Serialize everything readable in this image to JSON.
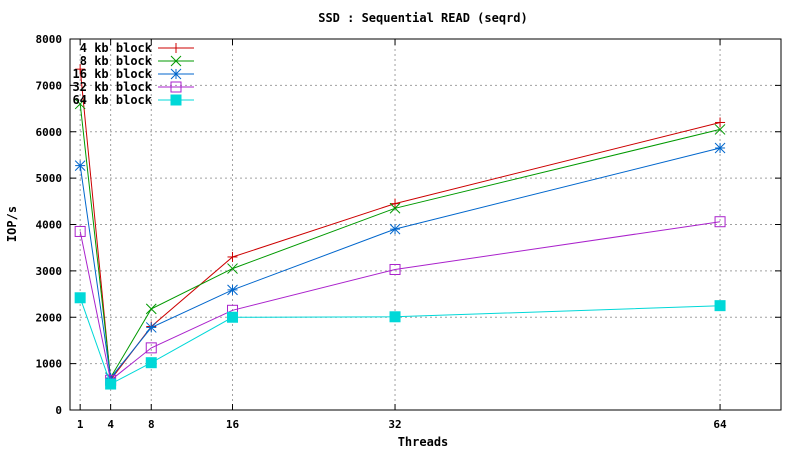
{
  "chart_data": {
    "type": "line",
    "title": "SSD : Sequential READ (seqrd)",
    "xlabel": "Threads",
    "ylabel": "IOP/s",
    "x": [
      1,
      4,
      8,
      16,
      32,
      64
    ],
    "xticks": [
      1,
      4,
      8,
      16,
      32,
      64
    ],
    "xlim": [
      0,
      70
    ],
    "yticks": [
      0,
      1000,
      2000,
      3000,
      4000,
      5000,
      6000,
      7000,
      8000
    ],
    "ylim": [
      0,
      8000
    ],
    "grid": true,
    "legend_position": "top-left",
    "series": [
      {
        "name": "4 kb block",
        "values": [
          7350,
          650,
          1800,
          3300,
          4450,
          6200
        ],
        "color": "#cc0000",
        "marker": "plus"
      },
      {
        "name": "8 kb block",
        "values": [
          6600,
          700,
          2180,
          3050,
          4350,
          6050
        ],
        "color": "#009900",
        "marker": "cross"
      },
      {
        "name": "16 kb block",
        "values": [
          5270,
          690,
          1780,
          2590,
          3900,
          5650
        ],
        "color": "#0066cc",
        "marker": "star"
      },
      {
        "name": "32 kb block",
        "values": [
          3850,
          640,
          1340,
          2150,
          3030,
          4060
        ],
        "color": "#aa22cc",
        "marker": "square-open"
      },
      {
        "name": "64 kb block",
        "values": [
          2420,
          560,
          1020,
          2000,
          2010,
          2250
        ],
        "color": "#00d8d8",
        "marker": "square-filled"
      }
    ]
  }
}
